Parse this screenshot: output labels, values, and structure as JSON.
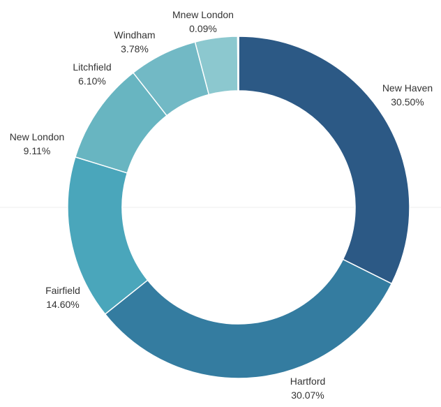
{
  "chart_data": {
    "type": "pie",
    "variant": "donut",
    "title": "",
    "slices": [
      {
        "label": "New Haven",
        "value": 30.5,
        "value_label": "30.50%",
        "color": "#2c5985"
      },
      {
        "label": "Hartford",
        "value": 30.07,
        "value_label": "30.07%",
        "color": "#347ca0"
      },
      {
        "label": "Fairfield",
        "value": 14.6,
        "value_label": "14.60%",
        "color": "#4aa6bb"
      },
      {
        "label": "New London",
        "value": 9.11,
        "value_label": "9.11%",
        "color": "#68b5c1"
      },
      {
        "label": "Litchfield",
        "value": 6.1,
        "value_label": "6.10%",
        "color": "#72b9c5"
      },
      {
        "label": "Windham",
        "value": 3.78,
        "value_label": "3.78%",
        "color": "#8cc8cf"
      },
      {
        "label": "Mnew London",
        "value": 0.09,
        "value_label": "0.09%",
        "color": "#98d1d1"
      }
    ],
    "start_angle_deg": 0,
    "direction": "clockwise",
    "legend": "none",
    "labels": "outside"
  }
}
